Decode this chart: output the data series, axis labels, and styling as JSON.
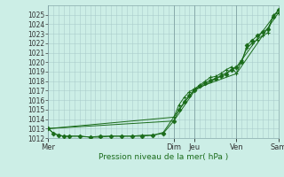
{
  "xlabel": "Pression niveau de la mer( hPa )",
  "bg_color": "#cceee6",
  "grid_color": "#aacccc",
  "line_color": "#1a6b1a",
  "ylim": [
    1012,
    1026
  ],
  "yticks": [
    1012,
    1013,
    1014,
    1015,
    1016,
    1017,
    1018,
    1019,
    1020,
    1021,
    1022,
    1023,
    1024,
    1025
  ],
  "xlim": [
    0,
    132
  ],
  "day_labels": [
    "Mer",
    "Dim",
    "Jeu",
    "Ven",
    "Sam"
  ],
  "day_positions": [
    0,
    72,
    84,
    108,
    132
  ],
  "series1_x": [
    0,
    3,
    6,
    9,
    12,
    18,
    24,
    30,
    36,
    42,
    48,
    54,
    60,
    66,
    72,
    75,
    78,
    81,
    84,
    87,
    90,
    93,
    96,
    99,
    102,
    105,
    108,
    111,
    114,
    117,
    120,
    123,
    126,
    129,
    132
  ],
  "series1_y": [
    1013.0,
    1012.5,
    1012.3,
    1012.2,
    1012.2,
    1012.2,
    1012.1,
    1012.2,
    1012.2,
    1012.2,
    1012.2,
    1012.2,
    1012.3,
    1012.5,
    1013.8,
    1015.0,
    1015.8,
    1016.5,
    1017.0,
    1017.5,
    1017.8,
    1018.1,
    1018.3,
    1018.5,
    1018.7,
    1019.2,
    1019.5,
    1020.0,
    1021.8,
    1022.3,
    1022.8,
    1023.2,
    1023.5,
    1024.8,
    1025.5
  ],
  "series1_marker": "D",
  "series1_ms": 2.5,
  "series2_x": [
    0,
    3,
    6,
    9,
    12,
    18,
    24,
    30,
    36,
    42,
    48,
    54,
    60,
    66,
    72,
    75,
    78,
    81,
    84,
    87,
    90,
    93,
    96,
    99,
    102,
    105,
    108,
    111,
    114,
    117,
    120,
    123,
    126,
    129,
    132
  ],
  "series2_y": [
    1013.0,
    1012.5,
    1012.3,
    1012.2,
    1012.2,
    1012.2,
    1012.1,
    1012.1,
    1012.2,
    1012.2,
    1012.2,
    1012.3,
    1012.3,
    1012.6,
    1014.2,
    1015.5,
    1016.3,
    1016.9,
    1017.2,
    1017.6,
    1018.0,
    1018.4,
    1018.5,
    1018.8,
    1019.2,
    1019.5,
    1018.8,
    1020.2,
    1021.5,
    1022.0,
    1022.4,
    1022.8,
    1023.1,
    1025.0,
    1025.2
  ],
  "series2_marker": "+",
  "series2_ms": 3.5,
  "line3_x": [
    0,
    72,
    84,
    108,
    132
  ],
  "line3_y": [
    1013.0,
    1013.8,
    1017.0,
    1019.5,
    1025.5
  ],
  "line4_x": [
    0,
    72,
    84,
    108,
    132
  ],
  "line4_y": [
    1013.0,
    1014.2,
    1017.2,
    1018.8,
    1025.2
  ]
}
